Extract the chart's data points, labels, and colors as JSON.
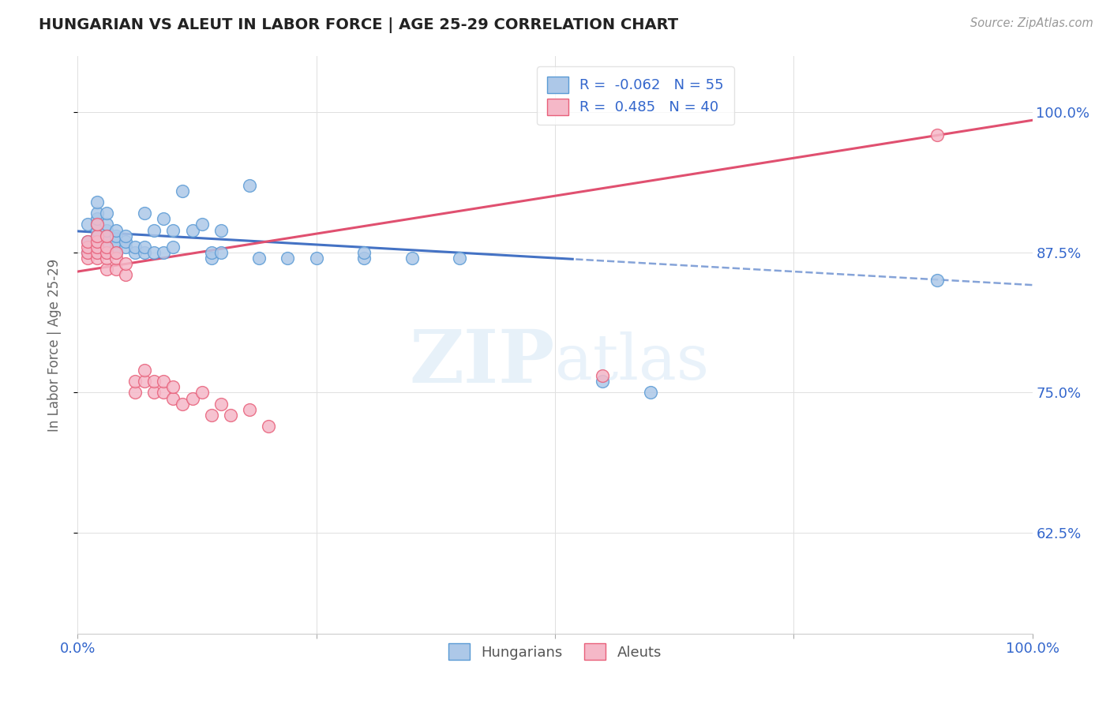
{
  "title": "HUNGARIAN VS ALEUT IN LABOR FORCE | AGE 25-29 CORRELATION CHART",
  "source": "Source: ZipAtlas.com",
  "ylabel": "In Labor Force | Age 25-29",
  "xlim": [
    0.0,
    1.0
  ],
  "ylim": [
    0.535,
    1.05
  ],
  "y_ticks": [
    0.625,
    0.75,
    0.875,
    1.0
  ],
  "y_tick_labels": [
    "62.5%",
    "75.0%",
    "87.5%",
    "100.0%"
  ],
  "x_tick_labels": [
    "0.0%",
    "100.0%"
  ],
  "x_tick_positions": [
    0.0,
    1.0
  ],
  "hungarian_R": -0.062,
  "hungarian_N": 55,
  "aleut_R": 0.485,
  "aleut_N": 40,
  "hungarian_color": "#adc8e8",
  "aleut_color": "#f5b8c8",
  "hungarian_edge_color": "#5b9bd5",
  "aleut_edge_color": "#e8607a",
  "hungarian_line_color": "#4472c4",
  "aleut_line_color": "#e05070",
  "hungarian_x": [
    0.01,
    0.01,
    0.01,
    0.02,
    0.02,
    0.02,
    0.02,
    0.02,
    0.02,
    0.02,
    0.02,
    0.03,
    0.03,
    0.03,
    0.03,
    0.03,
    0.03,
    0.03,
    0.04,
    0.04,
    0.04,
    0.04,
    0.04,
    0.05,
    0.05,
    0.05,
    0.06,
    0.06,
    0.07,
    0.07,
    0.07,
    0.08,
    0.08,
    0.09,
    0.09,
    0.1,
    0.1,
    0.11,
    0.12,
    0.13,
    0.14,
    0.14,
    0.15,
    0.15,
    0.18,
    0.19,
    0.22,
    0.25,
    0.3,
    0.3,
    0.35,
    0.4,
    0.55,
    0.6,
    0.9
  ],
  "hungarian_y": [
    0.875,
    0.885,
    0.9,
    0.875,
    0.885,
    0.89,
    0.895,
    0.9,
    0.905,
    0.91,
    0.92,
    0.875,
    0.88,
    0.885,
    0.89,
    0.895,
    0.9,
    0.91,
    0.875,
    0.88,
    0.885,
    0.89,
    0.895,
    0.88,
    0.885,
    0.89,
    0.875,
    0.88,
    0.875,
    0.88,
    0.91,
    0.875,
    0.895,
    0.875,
    0.905,
    0.88,
    0.895,
    0.93,
    0.895,
    0.9,
    0.87,
    0.875,
    0.875,
    0.895,
    0.935,
    0.87,
    0.87,
    0.87,
    0.87,
    0.875,
    0.87,
    0.87,
    0.76,
    0.75,
    0.85
  ],
  "aleut_x": [
    0.01,
    0.01,
    0.01,
    0.01,
    0.02,
    0.02,
    0.02,
    0.02,
    0.02,
    0.02,
    0.03,
    0.03,
    0.03,
    0.03,
    0.03,
    0.04,
    0.04,
    0.04,
    0.05,
    0.05,
    0.06,
    0.06,
    0.07,
    0.07,
    0.08,
    0.08,
    0.09,
    0.09,
    0.1,
    0.1,
    0.11,
    0.12,
    0.13,
    0.14,
    0.15,
    0.16,
    0.18,
    0.2,
    0.55,
    0.9
  ],
  "aleut_y": [
    0.87,
    0.875,
    0.88,
    0.885,
    0.87,
    0.875,
    0.88,
    0.885,
    0.89,
    0.9,
    0.86,
    0.87,
    0.875,
    0.88,
    0.89,
    0.86,
    0.87,
    0.875,
    0.855,
    0.865,
    0.75,
    0.76,
    0.76,
    0.77,
    0.75,
    0.76,
    0.75,
    0.76,
    0.745,
    0.755,
    0.74,
    0.745,
    0.75,
    0.73,
    0.74,
    0.73,
    0.735,
    0.72,
    0.765,
    0.98
  ]
}
